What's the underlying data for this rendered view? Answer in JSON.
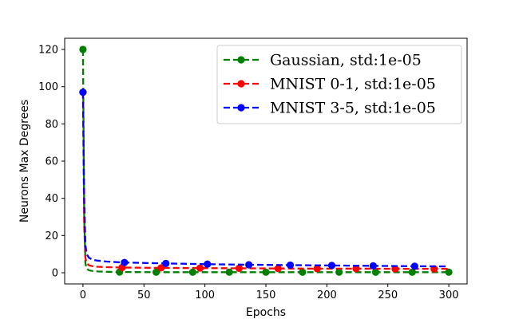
{
  "chart_data": {
    "type": "line",
    "title": "",
    "xlabel": "Epochs",
    "ylabel": "Neurons Max Degrees",
    "xlim": [
      -15,
      315
    ],
    "ylim": [
      -6,
      126
    ],
    "xticks": [
      0,
      50,
      100,
      150,
      200,
      250,
      300
    ],
    "yticks": [
      0,
      20,
      40,
      60,
      80,
      100,
      120
    ],
    "grid": false,
    "legend_position": "top-right",
    "series": [
      {
        "name": "Gaussian, std:1e-05",
        "color": "#008000",
        "line_style": "dashed",
        "marker": "circle",
        "x": [
          0,
          1,
          2,
          3,
          5,
          8,
          12,
          20,
          30,
          60,
          90,
          120,
          150,
          180,
          210,
          240,
          270,
          300
        ],
        "y": [
          120,
          30,
          5,
          2.2,
          1.3,
          0.9,
          0.7,
          0.5,
          0.4,
          0.3,
          0.3,
          0.3,
          0.3,
          0.3,
          0.3,
          0.3,
          0.3,
          0.3
        ],
        "marker_x": [
          0,
          30,
          60,
          90,
          120,
          150,
          180,
          210,
          240,
          270,
          300
        ],
        "marker_y": [
          120,
          0.4,
          0.3,
          0.3,
          0.3,
          0.3,
          0.3,
          0.3,
          0.3,
          0.3,
          0.3
        ]
      },
      {
        "name": "MNIST 0-1, std:1e-05",
        "color": "#ff0000",
        "line_style": "dashed",
        "marker": "circle",
        "x": [
          0,
          1,
          2,
          3,
          5,
          8,
          12,
          20,
          32,
          64,
          96,
          128,
          160,
          192,
          224,
          256,
          288,
          300
        ],
        "y": [
          97,
          25,
          8,
          5,
          4,
          3.5,
          3.2,
          3,
          2.8,
          2.6,
          2.5,
          2.4,
          2.3,
          2.2,
          2.2,
          2.1,
          2.1,
          2.1
        ],
        "marker_x": [
          0,
          32,
          64,
          96,
          128,
          160,
          192,
          224,
          256,
          288
        ],
        "marker_y": [
          97,
          2.8,
          2.6,
          2.5,
          2.4,
          2.3,
          2.2,
          2.2,
          2.1,
          2.1
        ]
      },
      {
        "name": "MNIST 3-5, std:1e-05",
        "color": "#0000ff",
        "line_style": "dashed",
        "marker": "circle",
        "x": [
          0,
          1,
          2,
          3,
          5,
          8,
          12,
          20,
          34,
          68,
          102,
          136,
          170,
          204,
          238,
          272,
          300
        ],
        "y": [
          97,
          40,
          15,
          10,
          8,
          7,
          6.5,
          6,
          5.5,
          5,
          4.6,
          4.3,
          4.1,
          3.9,
          3.7,
          3.5,
          3.4
        ],
        "marker_x": [
          0,
          34,
          68,
          102,
          136,
          170,
          204,
          238,
          272
        ],
        "marker_y": [
          97,
          5.5,
          5,
          4.6,
          4.3,
          4.1,
          3.9,
          3.7,
          3.5
        ]
      }
    ]
  }
}
